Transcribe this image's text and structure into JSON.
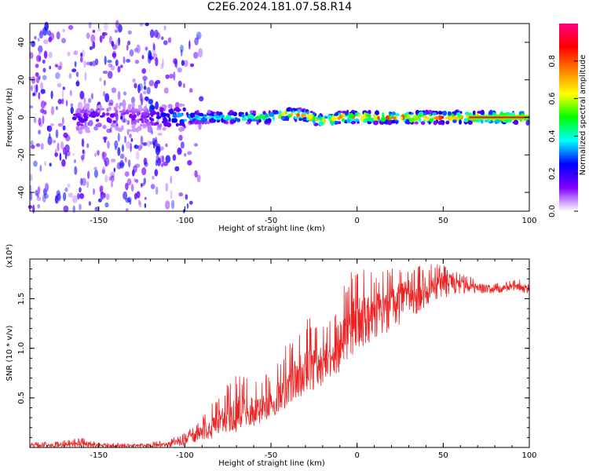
{
  "figure": {
    "title": "C2E6.2024.181.07.58.R14"
  },
  "colors": {
    "snr_line": "#ee2222",
    "axis": "#000000"
  },
  "chart_data": [
    {
      "type": "heatmap",
      "title": "C2E6.2024.181.07.58.R14",
      "xlabel": "Height of straight line (km)",
      "ylabel": "Frequency (Hz)",
      "xlim": [
        -190,
        100
      ],
      "ylim": [
        -50,
        50
      ],
      "xticks": [
        -150,
        -100,
        -50,
        0,
        50,
        100
      ],
      "yticks": [
        -40,
        -20,
        0,
        20,
        40
      ],
      "colorbar": {
        "label": "Normalized spectral amplitude",
        "range": [
          0.0,
          1.0
        ],
        "ticks": [
          "0.0",
          "0.2",
          "0.4",
          "0.6",
          "0.8"
        ],
        "colormap": [
          "#ffffff",
          "#8000ff",
          "#0000ff",
          "#00ffff",
          "#00ff00",
          "#ffff00",
          "#ff8000",
          "#ff0000",
          "#ff0080"
        ]
      },
      "ridge": {
        "description_axis": "frequency centroid vs height",
        "x": [
          -175,
          -150,
          -125,
          -100,
          -75,
          -50,
          -40,
          -30,
          -20,
          -10,
          0,
          25,
          50,
          65,
          100
        ],
        "y": [
          -2,
          0,
          0,
          0,
          0,
          0,
          2,
          1,
          -2,
          0,
          0,
          0,
          0,
          0,
          0
        ],
        "peak_amplitude": [
          0.2,
          0.2,
          0.15,
          0.45,
          0.55,
          0.6,
          0.85,
          0.85,
          0.8,
          0.85,
          0.9,
          0.9,
          0.9,
          0.95,
          0.95
        ]
      },
      "scatter_band_x": [
        -190,
        -110
      ],
      "grid": false
    },
    {
      "type": "line",
      "xlabel": "Height of straight line (km)",
      "ylabel": "SNR (10 * v/v)",
      "exponent_label": "(x10⁴)",
      "xlim": [
        -190,
        100
      ],
      "ylim": [
        0,
        1.9
      ],
      "xticks": [
        -150,
        -100,
        -50,
        0,
        50,
        100
      ],
      "yticks": [
        0.5,
        1.0,
        1.5
      ],
      "ytick_labels": [
        "0.5",
        "1.0",
        "1.5"
      ],
      "series": [
        {
          "x": [
            -190,
            -175,
            -160,
            -150,
            -125,
            -110,
            -100,
            -90,
            -80,
            -70,
            -60,
            -50,
            -40,
            -30,
            -20,
            -10,
            0,
            10,
            20,
            30,
            40,
            50,
            60,
            70,
            80,
            90,
            100
          ],
          "envelope_low": [
            0.0,
            0.0,
            0.0,
            0.0,
            0.0,
            0.0,
            0.02,
            0.04,
            0.08,
            0.15,
            0.2,
            0.3,
            0.4,
            0.55,
            0.6,
            0.75,
            0.95,
            1.05,
            1.15,
            1.3,
            1.4,
            1.5,
            1.55,
            1.55,
            1.55,
            1.58,
            1.55
          ],
          "envelope_high": [
            0.05,
            0.06,
            0.1,
            0.05,
            0.04,
            0.08,
            0.15,
            0.3,
            0.55,
            0.75,
            0.7,
            0.75,
            1.1,
            1.35,
            1.2,
            1.55,
            1.9,
            1.75,
            1.85,
            1.8,
            1.85,
            1.85,
            1.75,
            1.7,
            1.65,
            1.7,
            1.7
          ],
          "mean": [
            0.02,
            0.02,
            0.04,
            0.02,
            0.02,
            0.03,
            0.07,
            0.15,
            0.25,
            0.35,
            0.4,
            0.45,
            0.6,
            0.8,
            0.85,
            1.05,
            1.3,
            1.35,
            1.45,
            1.55,
            1.6,
            1.68,
            1.65,
            1.62,
            1.6,
            1.62,
            1.62
          ]
        }
      ],
      "grid": false
    }
  ]
}
